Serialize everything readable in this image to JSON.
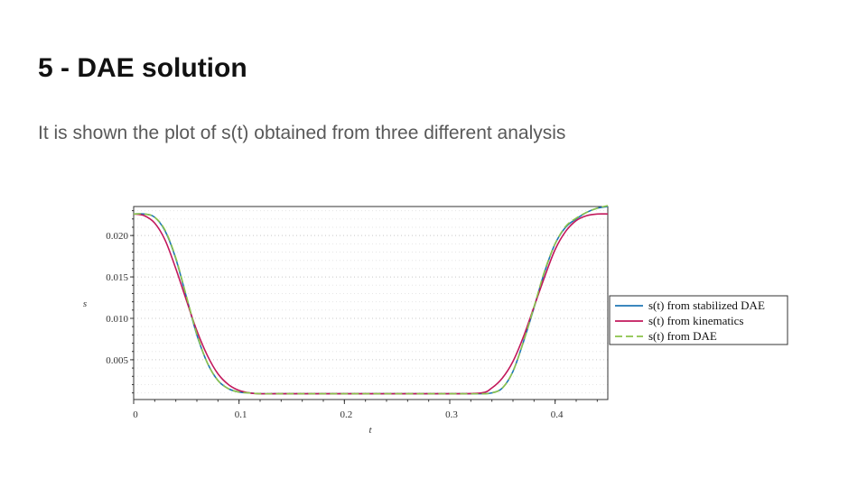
{
  "slide": {
    "title": "5 - DAE solution",
    "subtitle": "It is shown the plot of s(t) obtained from three different analysis"
  },
  "chart_data": {
    "type": "line",
    "title": "",
    "xlabel": "t",
    "ylabel": "s",
    "xlim": [
      0,
      0.45
    ],
    "ylim": [
      0.0002,
      0.0235
    ],
    "x_ticks": [
      0,
      0.1,
      0.2,
      0.3,
      0.4
    ],
    "x_tick_labels": [
      "0",
      "0.1",
      "0.2",
      "0.3",
      "0.4"
    ],
    "y_ticks": [
      0.005,
      0.01,
      0.015,
      0.02
    ],
    "y_tick_labels": [
      "0.005",
      "0.010",
      "0.015",
      "0.020"
    ],
    "grid": true,
    "legend_position": "right",
    "series": [
      {
        "name": "s(t) from stabilized DAE",
        "color": "#1f77b4",
        "dash": "solid",
        "x": [
          0,
          0.01,
          0.02,
          0.03,
          0.04,
          0.05,
          0.06,
          0.07,
          0.08,
          0.09,
          0.1,
          0.11,
          0.12,
          0.14,
          0.16,
          0.2,
          0.25,
          0.3,
          0.33,
          0.34,
          0.35,
          0.36,
          0.37,
          0.38,
          0.39,
          0.4,
          0.41,
          0.42,
          0.43,
          0.44,
          0.45
        ],
        "y": [
          0.0226,
          0.0226,
          0.0222,
          0.0205,
          0.0172,
          0.0126,
          0.008,
          0.0046,
          0.0025,
          0.0015,
          0.0011,
          0.001,
          0.0009,
          0.0009,
          0.0009,
          0.0009,
          0.0009,
          0.0009,
          0.0009,
          0.001,
          0.0016,
          0.0036,
          0.0072,
          0.0113,
          0.0156,
          0.019,
          0.021,
          0.022,
          0.0228,
          0.0233,
          0.0235
        ]
      },
      {
        "name": "s(t) from kinematics",
        "color": "#c2185b",
        "dash": "solid",
        "x": [
          0,
          0.01,
          0.02,
          0.03,
          0.04,
          0.05,
          0.06,
          0.07,
          0.08,
          0.09,
          0.1,
          0.11,
          0.12,
          0.14,
          0.16,
          0.2,
          0.25,
          0.3,
          0.33,
          0.34,
          0.35,
          0.36,
          0.37,
          0.38,
          0.39,
          0.4,
          0.41,
          0.42,
          0.43,
          0.44,
          0.45
        ],
        "y": [
          0.0226,
          0.0224,
          0.0215,
          0.0194,
          0.016,
          0.0122,
          0.0085,
          0.0055,
          0.0033,
          0.002,
          0.0013,
          0.001,
          0.0009,
          0.0009,
          0.0009,
          0.0009,
          0.0009,
          0.0009,
          0.001,
          0.0016,
          0.0028,
          0.0048,
          0.0078,
          0.0114,
          0.015,
          0.0183,
          0.0205,
          0.0218,
          0.0224,
          0.0226,
          0.0226
        ]
      },
      {
        "name": "s(t) from DAE",
        "color": "#8bc34a",
        "dash": "dashed",
        "x": [
          0,
          0.01,
          0.02,
          0.03,
          0.04,
          0.05,
          0.06,
          0.07,
          0.08,
          0.09,
          0.1,
          0.11,
          0.12,
          0.14,
          0.16,
          0.2,
          0.25,
          0.3,
          0.33,
          0.34,
          0.35,
          0.36,
          0.37,
          0.38,
          0.39,
          0.4,
          0.41,
          0.42,
          0.43,
          0.44,
          0.45
        ],
        "y": [
          0.0226,
          0.0226,
          0.0222,
          0.0206,
          0.0173,
          0.0127,
          0.0081,
          0.0046,
          0.0025,
          0.0015,
          0.0011,
          0.001,
          0.0009,
          0.0009,
          0.0009,
          0.0009,
          0.0009,
          0.0009,
          0.0009,
          0.001,
          0.0016,
          0.0036,
          0.0072,
          0.0114,
          0.0157,
          0.019,
          0.0211,
          0.0221,
          0.0228,
          0.0233,
          0.0236
        ]
      }
    ]
  }
}
